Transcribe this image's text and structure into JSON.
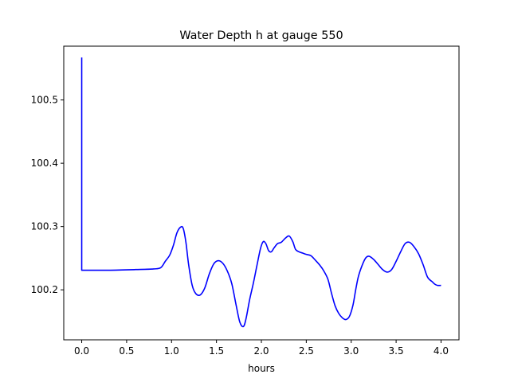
{
  "chart_data": {
    "type": "line",
    "title": "Water Depth h at gauge 550",
    "xlabel": "hours",
    "ylabel": "",
    "xlim": [
      -0.2,
      4.2
    ],
    "ylim": [
      100.121,
      100.585
    ],
    "xticks": [
      0.0,
      0.5,
      1.0,
      1.5,
      2.0,
      2.5,
      3.0,
      3.5,
      4.0
    ],
    "xtick_labels": [
      "0.0",
      "0.5",
      "1.0",
      "1.5",
      "2.0",
      "2.5",
      "3.0",
      "3.5",
      "4.0"
    ],
    "yticks": [
      100.2,
      100.3,
      100.4,
      100.5
    ],
    "ytick_labels": [
      "100.2",
      "100.3",
      "100.4",
      "100.5"
    ],
    "grid": false,
    "series": [
      {
        "color": "#0000ff",
        "x": [
          0.0,
          0.0,
          0.05,
          0.3,
          0.6,
          0.8,
          0.88,
          0.93,
          0.98,
          1.02,
          1.06,
          1.1,
          1.13,
          1.16,
          1.19,
          1.23,
          1.27,
          1.32,
          1.37,
          1.42,
          1.47,
          1.52,
          1.57,
          1.62,
          1.67,
          1.72,
          1.76,
          1.8,
          1.83,
          1.87,
          1.91,
          1.95,
          1.99,
          2.02,
          2.05,
          2.08,
          2.11,
          2.14,
          2.18,
          2.22,
          2.27,
          2.31,
          2.35,
          2.38,
          2.42,
          2.46,
          2.5,
          2.55,
          2.6,
          2.65,
          2.69,
          2.74,
          2.78,
          2.82,
          2.86,
          2.9,
          2.94,
          2.98,
          3.02,
          3.05,
          3.08,
          3.12,
          3.16,
          3.2,
          3.25,
          3.3,
          3.35,
          3.4,
          3.45,
          3.5,
          3.55,
          3.6,
          3.65,
          3.7,
          3.75,
          3.8,
          3.85,
          3.9,
          3.93,
          3.96,
          4.0
        ],
        "y": [
          100.567,
          100.231,
          100.231,
          100.231,
          100.232,
          100.233,
          100.235,
          100.245,
          100.255,
          100.27,
          100.29,
          100.299,
          100.297,
          100.275,
          100.24,
          100.207,
          100.194,
          100.192,
          100.203,
          100.225,
          100.241,
          100.246,
          100.242,
          100.23,
          100.21,
          100.175,
          100.149,
          100.142,
          100.155,
          100.185,
          100.21,
          100.238,
          100.265,
          100.276,
          100.273,
          100.262,
          100.26,
          100.266,
          100.273,
          100.275,
          100.282,
          100.285,
          100.276,
          100.264,
          100.26,
          100.258,
          100.256,
          100.254,
          100.247,
          100.239,
          100.231,
          100.217,
          100.195,
          100.175,
          100.163,
          100.156,
          100.153,
          100.158,
          100.176,
          100.2,
          100.221,
          100.238,
          100.25,
          100.253,
          100.248,
          100.24,
          100.232,
          100.228,
          100.232,
          100.245,
          100.26,
          100.273,
          100.275,
          100.268,
          100.257,
          100.24,
          100.22,
          100.213,
          100.209,
          100.207,
          100.207
        ]
      }
    ]
  }
}
